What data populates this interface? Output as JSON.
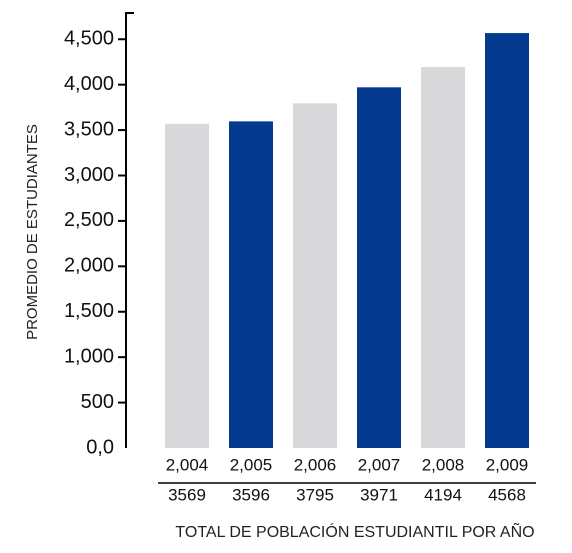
{
  "chart_data": {
    "type": "bar",
    "categories": [
      "2,004",
      "2,005",
      "2,006",
      "2,007",
      "2,008",
      "2,009"
    ],
    "values": [
      3569,
      3596,
      3795,
      3971,
      4194,
      4568
    ],
    "table_values": [
      "3569",
      "3596",
      "3795",
      "3971",
      "4194",
      "4568"
    ],
    "bar_colors": [
      "#d9d9db",
      "#043b8f",
      "#d9d9db",
      "#043b8f",
      "#d9d9db",
      "#043b8f"
    ],
    "ylabel": "PROMEDIO DE ESTUDIANTES",
    "xlabel": "TOTAL DE POBLACIÓN ESTUDIANTIL POR AÑO",
    "ylim": [
      0,
      4800
    ],
    "yticks": [
      0,
      500,
      1000,
      1500,
      2000,
      2500,
      3000,
      3500,
      4000,
      4500
    ],
    "ytick_labels": [
      "0,0",
      "500",
      "1,000",
      "1,500",
      "2,000",
      "2,500",
      "3,000",
      "3,500",
      "4,000",
      "4,500"
    ],
    "grid": false,
    "legend": "none"
  }
}
